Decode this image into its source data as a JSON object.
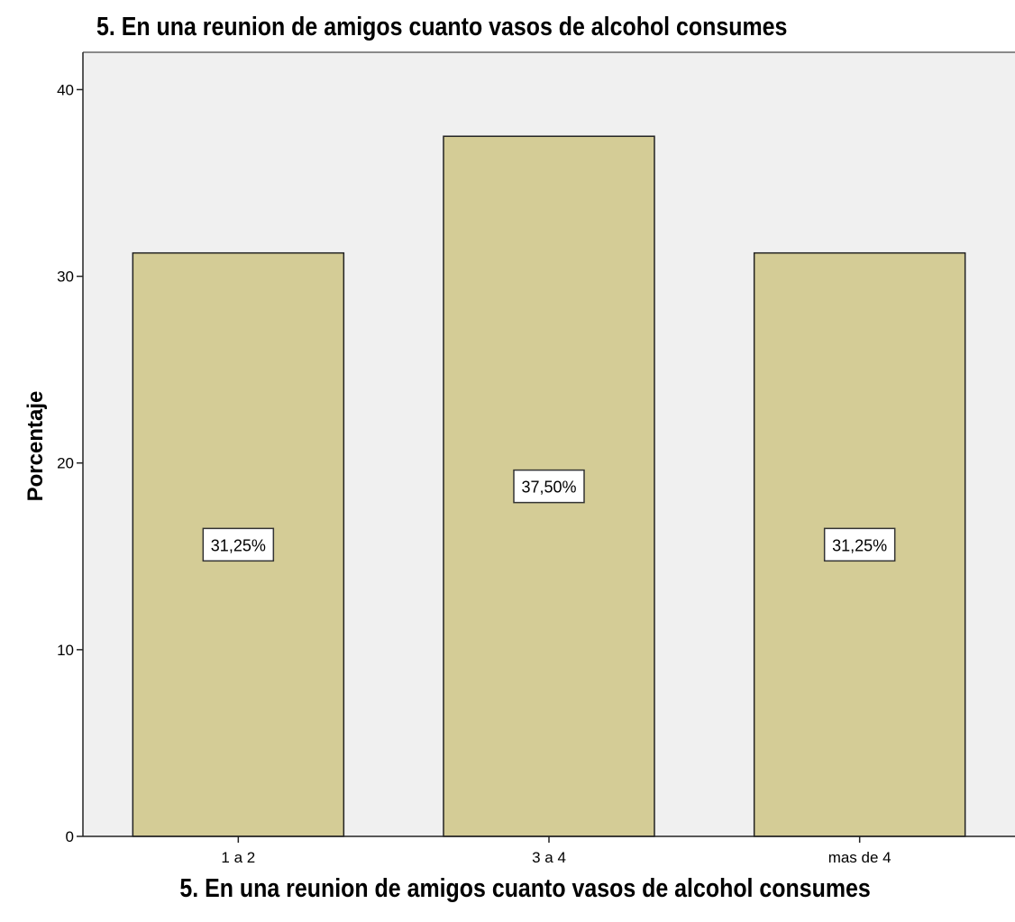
{
  "chart_data": {
    "type": "bar",
    "title": "5. En una reunion de amigos cuanto vasos de alcohol consumes",
    "xlabel": "5. En una reunion de amigos cuanto vasos de alcohol consumes",
    "ylabel": "Porcentaje",
    "categories": [
      "1 a 2",
      "3 a 4",
      "mas de 4"
    ],
    "values": [
      31.25,
      37.5,
      31.25
    ],
    "data_labels": [
      "31,25%",
      "37,50%",
      "31,25%"
    ],
    "ylim": [
      0,
      42
    ],
    "yticks": [
      0,
      10,
      20,
      30,
      40
    ],
    "grid": false,
    "legend": "none",
    "colors": {
      "bar_fill": "#d4cc96",
      "bar_stroke": "#222222",
      "plot_bg": "#f0f0f0",
      "label_bg": "#ffffff"
    }
  }
}
